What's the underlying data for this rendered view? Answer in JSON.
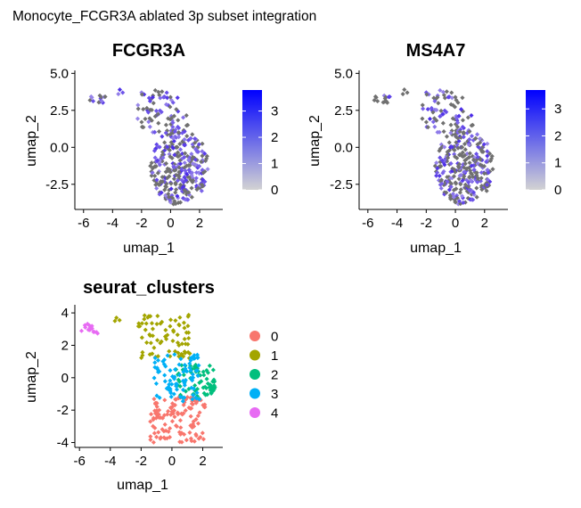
{
  "figure_title": "Monocyte_FCGR3A ablated 3p subset integration",
  "colors": {
    "points_grey": "#707070",
    "low_grey": "#D3D3D3",
    "high_blue": "#0000FF",
    "axis": "#000000"
  },
  "chart_data": [
    {
      "id": "fcgr3a",
      "type": "scatter",
      "title": "FCGR3A",
      "xlabel": "umap_1",
      "ylabel": "umap_2",
      "xlim": [
        -6.6,
        3.6
      ],
      "ylim": [
        -4.2,
        5.2
      ],
      "xticks": [
        -6,
        -4,
        -2,
        0,
        2
      ],
      "yticks": [
        -2.5,
        0.0,
        2.5,
        5.0
      ],
      "ytick_labels": [
        "-2.5",
        "0.0",
        "2.5",
        "5.0"
      ],
      "legend_ticks": [
        0,
        1,
        2,
        3
      ],
      "legend_max": 3.8,
      "expr_fraction": 0.5
    },
    {
      "id": "ms4a7",
      "type": "scatter",
      "title": "MS4A7",
      "xlabel": "umap_1",
      "ylabel": "umap_2",
      "xlim": [
        -6.6,
        3.6
      ],
      "ylim": [
        -4.2,
        5.2
      ],
      "xticks": [
        -6,
        -4,
        -2,
        0,
        2
      ],
      "yticks": [
        -2.5,
        0.0,
        2.5,
        5.0
      ],
      "ytick_labels": [
        "-2.5",
        "0.0",
        "2.5",
        "5.0"
      ],
      "legend_ticks": [
        0,
        1,
        2,
        3
      ],
      "legend_max": 3.7,
      "expr_fraction": 0.42
    },
    {
      "id": "clusters",
      "type": "scatter",
      "title": "seurat_clusters",
      "xlabel": "umap_1",
      "ylabel": "umap_2",
      "xlim": [
        -6.3,
        3.3
      ],
      "ylim": [
        -4.3,
        4.5
      ],
      "xticks": [
        -6,
        -4,
        -2,
        0,
        2
      ],
      "yticks": [
        -4,
        -2,
        0,
        2,
        4
      ],
      "ytick_labels": [
        "-4",
        "-2",
        "0",
        "2",
        "4"
      ],
      "legend": [
        {
          "name": "0",
          "color": "#F8766D"
        },
        {
          "name": "1",
          "color": "#A3A500"
        },
        {
          "name": "2",
          "color": "#00BF7D"
        },
        {
          "name": "3",
          "color": "#00B0F6"
        },
        {
          "name": "4",
          "color": "#E76BF3"
        }
      ],
      "clusters": [
        {
          "name": "0",
          "n": 120,
          "x_range": [
            -1.4,
            2.2
          ],
          "y_range": [
            -4.0,
            -1.2
          ]
        },
        {
          "name": "1",
          "n": 75,
          "x_range": [
            -2.2,
            1.2
          ],
          "y_range": [
            1.2,
            3.9
          ]
        },
        {
          "name": "2",
          "n": 70,
          "x_range": [
            0.2,
            2.8
          ],
          "y_range": [
            -1.3,
            0.8
          ]
        },
        {
          "name": "3",
          "n": 85,
          "x_range": [
            -1.2,
            1.8
          ],
          "y_range": [
            -1.5,
            1.5
          ]
        },
        {
          "name": "4",
          "n": 14,
          "x_range": [
            -5.9,
            -4.4
          ],
          "y_range": [
            2.7,
            3.4
          ]
        }
      ],
      "outliers": [
        {
          "cluster": "1",
          "x": -3.6,
          "y": 3.7
        },
        {
          "cluster": "1",
          "x": -3.4,
          "y": 3.55
        },
        {
          "cluster": "1",
          "x": -3.7,
          "y": 3.5
        }
      ]
    }
  ]
}
